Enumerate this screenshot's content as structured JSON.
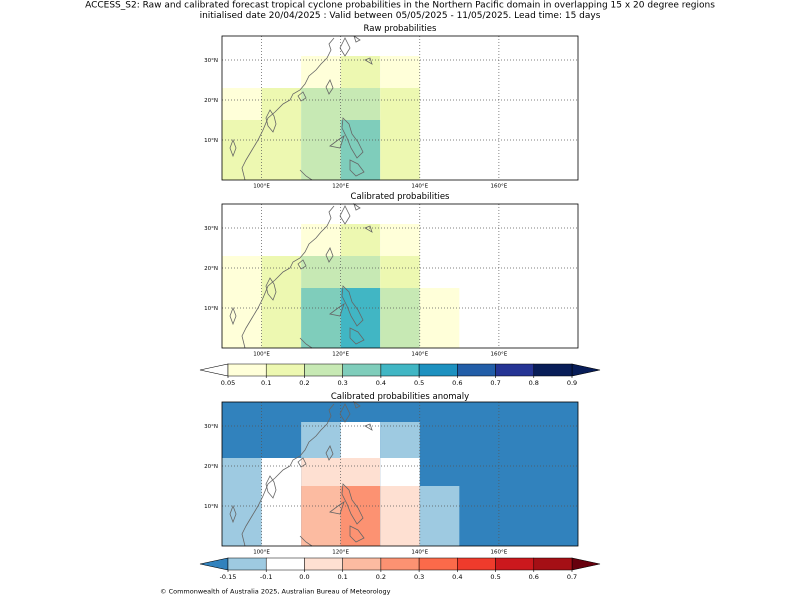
{
  "header": {
    "line1": "ACCESS_S2: Raw and calibrated forecast tropical cyclone probabilities in the Northern Pacific domain in overlapping 15 x 20 degree regions",
    "line2": "initialised date 20/04/2025 :  Valid between 05/05/2025 - 11/05/2025. Lead time: 15 days"
  },
  "footer": "© Commonwealth of Australia 2025, Australian Bureau of Meteorology",
  "chart_data": [
    {
      "type": "heatmap",
      "title": "Raw probabilities",
      "xlim": [
        90,
        180
      ],
      "ylim": [
        0,
        36
      ],
      "grid": true,
      "xticks": [
        {
          "value": 100,
          "label": "100°E"
        },
        {
          "value": 120,
          "label": "120°E"
        },
        {
          "value": 140,
          "label": "140°E"
        },
        {
          "value": 160,
          "label": "160°E"
        }
      ],
      "yticks": [
        {
          "value": 10,
          "label": "10°N"
        },
        {
          "value": 20,
          "label": "20°N"
        },
        {
          "value": 30,
          "label": "30°N"
        }
      ],
      "coastline": true,
      "colorbar": "probability",
      "cells": [
        {
          "lon": [
            90,
            110
          ],
          "lat": [
            0,
            15
          ],
          "value": 0.12
        },
        {
          "lon": [
            90,
            100
          ],
          "lat": [
            15,
            23
          ],
          "value": 0.07
        },
        {
          "lon": [
            100,
            110
          ],
          "lat": [
            15,
            23
          ],
          "value": 0.12
        },
        {
          "lon": [
            110,
            120
          ],
          "lat": [
            0,
            23
          ],
          "value": 0.25
        },
        {
          "lon": [
            120,
            130
          ],
          "lat": [
            15,
            23
          ],
          "value": 0.25
        },
        {
          "lon": [
            120,
            130
          ],
          "lat": [
            0,
            15
          ],
          "value": 0.35
        },
        {
          "lon": [
            130,
            140
          ],
          "lat": [
            0,
            23
          ],
          "value": 0.12
        },
        {
          "lon": [
            110,
            120
          ],
          "lat": [
            23,
            31
          ],
          "value": 0.07
        },
        {
          "lon": [
            120,
            130
          ],
          "lat": [
            23,
            31
          ],
          "value": 0.12
        },
        {
          "lon": [
            130,
            140
          ],
          "lat": [
            23,
            31
          ],
          "value": 0.07
        }
      ]
    },
    {
      "type": "heatmap",
      "title": "Calibrated probabilities",
      "xlim": [
        90,
        180
      ],
      "ylim": [
        0,
        36
      ],
      "grid": true,
      "xticks": [
        {
          "value": 100,
          "label": "100°E"
        },
        {
          "value": 120,
          "label": "120°E"
        },
        {
          "value": 140,
          "label": "140°E"
        },
        {
          "value": 160,
          "label": "160°E"
        }
      ],
      "yticks": [
        {
          "value": 10,
          "label": "10°N"
        },
        {
          "value": 20,
          "label": "20°N"
        },
        {
          "value": 30,
          "label": "30°N"
        }
      ],
      "coastline": true,
      "colorbar": "probability",
      "cells": [
        {
          "lon": [
            90,
            100
          ],
          "lat": [
            0,
            23
          ],
          "value": 0.07
        },
        {
          "lon": [
            100,
            110
          ],
          "lat": [
            0,
            23
          ],
          "value": 0.12
        },
        {
          "lon": [
            110,
            120
          ],
          "lat": [
            0,
            15
          ],
          "value": 0.35
        },
        {
          "lon": [
            110,
            120
          ],
          "lat": [
            15,
            23
          ],
          "value": 0.25
        },
        {
          "lon": [
            120,
            130
          ],
          "lat": [
            0,
            15
          ],
          "value": 0.45
        },
        {
          "lon": [
            120,
            130
          ],
          "lat": [
            15,
            23
          ],
          "value": 0.25
        },
        {
          "lon": [
            130,
            140
          ],
          "lat": [
            0,
            15
          ],
          "value": 0.25
        },
        {
          "lon": [
            130,
            140
          ],
          "lat": [
            15,
            23
          ],
          "value": 0.12
        },
        {
          "lon": [
            140,
            150
          ],
          "lat": [
            0,
            15
          ],
          "value": 0.07
        },
        {
          "lon": [
            110,
            120
          ],
          "lat": [
            23,
            31
          ],
          "value": 0.07
        },
        {
          "lon": [
            120,
            130
          ],
          "lat": [
            23,
            31
          ],
          "value": 0.12
        },
        {
          "lon": [
            130,
            140
          ],
          "lat": [
            23,
            31
          ],
          "value": 0.07
        }
      ]
    },
    {
      "type": "heatmap",
      "title": "Calibrated probabilities anomaly",
      "xlim": [
        90,
        180
      ],
      "ylim": [
        0,
        36
      ],
      "grid": true,
      "xticks": [
        {
          "value": 100,
          "label": "100°E"
        },
        {
          "value": 120,
          "label": "120°E"
        },
        {
          "value": 140,
          "label": "140°E"
        },
        {
          "value": 160,
          "label": "160°E"
        }
      ],
      "yticks": [
        {
          "value": 10,
          "label": "10°N"
        },
        {
          "value": 20,
          "label": "20°N"
        },
        {
          "value": 30,
          "label": "30°N"
        }
      ],
      "coastline": true,
      "colorbar": "anomaly",
      "background_value": -0.2,
      "cells": [
        {
          "lon": [
            90,
            100
          ],
          "lat": [
            0,
            22
          ],
          "value": -0.12
        },
        {
          "lon": [
            100,
            110
          ],
          "lat": [
            0,
            22
          ],
          "value": -0.05
        },
        {
          "lon": [
            110,
            120
          ],
          "lat": [
            0,
            15
          ],
          "value": 0.15
        },
        {
          "lon": [
            120,
            130
          ],
          "lat": [
            0,
            15
          ],
          "value": 0.25
        },
        {
          "lon": [
            130,
            140
          ],
          "lat": [
            0,
            15
          ],
          "value": 0.05
        },
        {
          "lon": [
            140,
            150
          ],
          "lat": [
            0,
            15
          ],
          "value": -0.12
        },
        {
          "lon": [
            110,
            130
          ],
          "lat": [
            15,
            22
          ],
          "value": 0.05
        },
        {
          "lon": [
            130,
            140
          ],
          "lat": [
            15,
            22
          ],
          "value": -0.05
        },
        {
          "lon": [
            110,
            120
          ],
          "lat": [
            22,
            31
          ],
          "value": -0.12
        },
        {
          "lon": [
            120,
            130
          ],
          "lat": [
            22,
            31
          ],
          "value": -0.05
        },
        {
          "lon": [
            130,
            140
          ],
          "lat": [
            22,
            31
          ],
          "value": -0.12
        }
      ]
    }
  ],
  "colorbars": {
    "probability": {
      "labels": [
        "0.05",
        "0.1",
        "0.2",
        "0.3",
        "0.4",
        "0.5",
        "0.6",
        "0.7",
        "0.8",
        "0.9"
      ],
      "colors": [
        "#ffffd9",
        "#edf8b1",
        "#c7e9b4",
        "#7fcdbb",
        "#41b6c4",
        "#1d91c0",
        "#225ea8",
        "#253494",
        "#081d58"
      ],
      "under_color": "#ffffff",
      "over_color": "#081d58"
    },
    "anomaly": {
      "labels": [
        "-0.15",
        "-0.1",
        "0.0",
        "0.1",
        "0.2",
        "0.3",
        "0.4",
        "0.5",
        "0.6",
        "0.7"
      ],
      "colors": [
        "#9ecae1",
        "#ffffff",
        "#fee0d2",
        "#fcbba1",
        "#fc9272",
        "#fb6a4a",
        "#ef3b2c",
        "#cb181d",
        "#a50f15"
      ],
      "under_color": "#3182bd",
      "over_color": "#67000d"
    }
  }
}
